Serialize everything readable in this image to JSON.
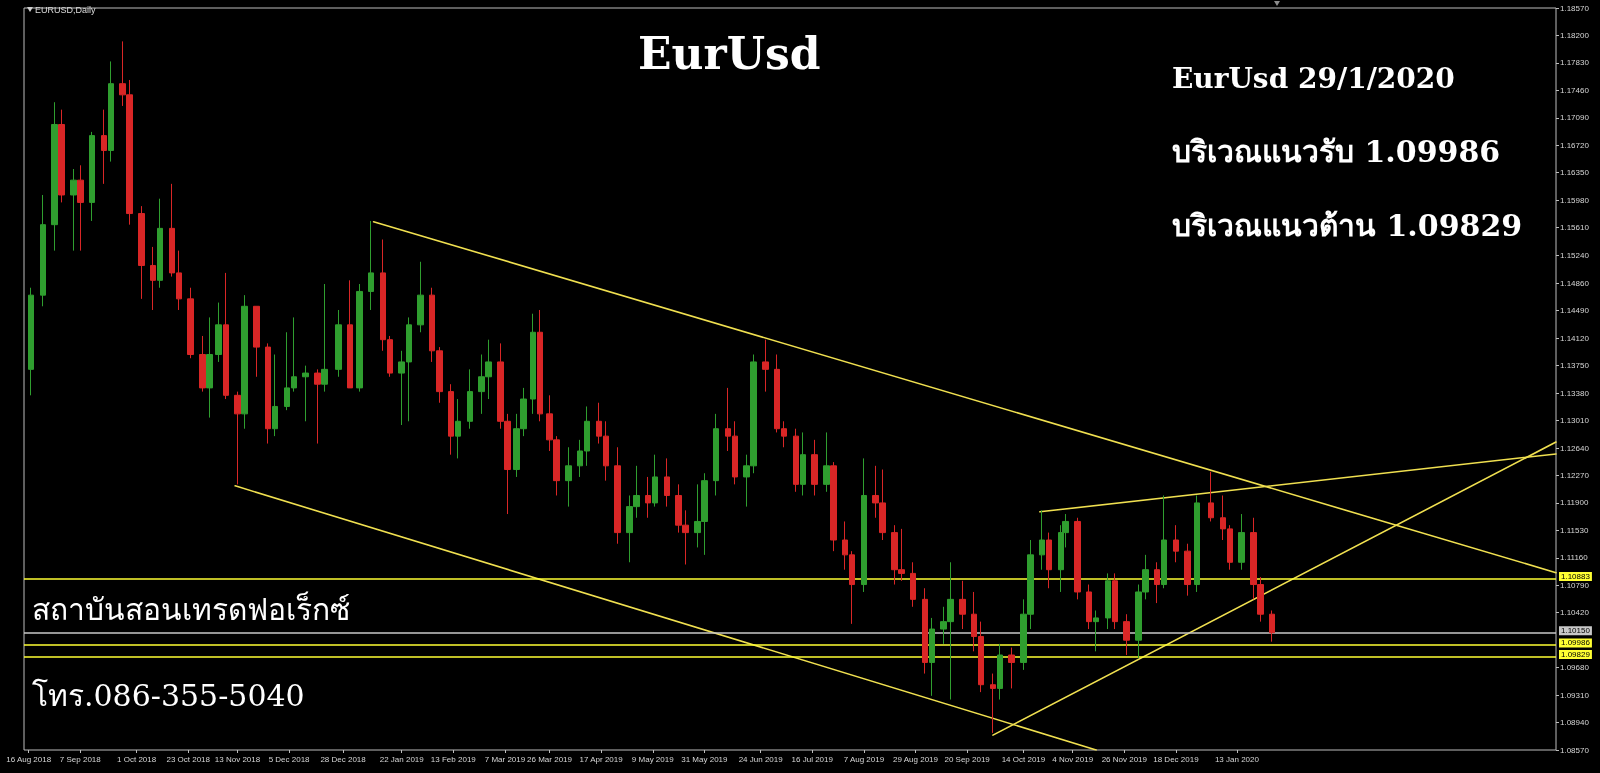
{
  "chart_data": {
    "type": "candlestick",
    "title": "EurUsd",
    "annotations": [
      "EURUSD,Daily",
      "EurUsd 29/1/2020",
      "บริเวณแนวรับ 1.09986",
      "บริเวณแนวต้าน 1.09829",
      "สถาบันสอนเทรดฟอเร็กซ์",
      "โทร.086-355-5040"
    ],
    "xlim": [
      "2018-08-14",
      "2020-05-28"
    ],
    "xticks": [
      {
        "value": "2018-08-16",
        "label": "16 Aug 2018"
      },
      {
        "value": "2018-09-07",
        "label": "7 Sep 2018"
      },
      {
        "value": "2018-10-01",
        "label": "1 Oct 2018"
      },
      {
        "value": "2018-10-23",
        "label": "23 Oct 2018"
      },
      {
        "value": "2018-11-13",
        "label": "13 Nov 2018"
      },
      {
        "value": "2018-12-05",
        "label": "5 Dec 2018"
      },
      {
        "value": "2018-12-28",
        "label": "28 Dec 2018"
      },
      {
        "value": "2019-01-22",
        "label": "22 Jan 2019"
      },
      {
        "value": "2019-02-13",
        "label": "13 Feb 2019"
      },
      {
        "value": "2019-03-07",
        "label": "7 Mar 2019"
      },
      {
        "value": "2019-03-26",
        "label": "26 Mar 2019"
      },
      {
        "value": "2019-04-17",
        "label": "17 Apr 2019"
      },
      {
        "value": "2019-05-09",
        "label": "9 May 2019"
      },
      {
        "value": "2019-05-31",
        "label": "31 May 2019"
      },
      {
        "value": "2019-06-24",
        "label": "24 Jun 2019"
      },
      {
        "value": "2019-07-16",
        "label": "16 Jul 2019"
      },
      {
        "value": "2019-08-07",
        "label": "7 Aug 2019"
      },
      {
        "value": "2019-08-29",
        "label": "29 Aug 2019"
      },
      {
        "value": "2019-09-20",
        "label": "20 Sep 2019"
      },
      {
        "value": "2019-10-14",
        "label": "14 Oct 2019"
      },
      {
        "value": "2019-11-04",
        "label": "4 Nov 2019"
      },
      {
        "value": "2019-11-26",
        "label": "26 Nov 2019"
      },
      {
        "value": "2019-12-18",
        "label": "18 Dec 2019"
      },
      {
        "value": "2020-01-13",
        "label": "13 Jan 2020"
      }
    ],
    "ylim": [
      1.0857,
      1.1857
    ],
    "yticks": [
      {
        "value": 1.1857,
        "label": "1.18570"
      },
      {
        "value": 1.182,
        "label": "1.18200"
      },
      {
        "value": 1.1783,
        "label": "1.17830"
      },
      {
        "value": 1.1746,
        "label": "1.17460"
      },
      {
        "value": 1.1709,
        "label": "1.17090"
      },
      {
        "value": 1.1672,
        "label": "1.16720"
      },
      {
        "value": 1.1635,
        "label": "1.16350"
      },
      {
        "value": 1.1598,
        "label": "1.15980"
      },
      {
        "value": 1.1561,
        "label": "1.15610"
      },
      {
        "value": 1.1524,
        "label": "1.15240"
      },
      {
        "value": 1.1486,
        "label": "1.14860"
      },
      {
        "value": 1.1449,
        "label": "1.14490"
      },
      {
        "value": 1.1412,
        "label": "1.14120"
      },
      {
        "value": 1.1375,
        "label": "1.13750"
      },
      {
        "value": 1.1338,
        "label": "1.13380"
      },
      {
        "value": 1.1301,
        "label": "1.13010"
      },
      {
        "value": 1.1264,
        "label": "1.12640"
      },
      {
        "value": 1.1227,
        "label": "1.12270"
      },
      {
        "value": 1.119,
        "label": "1.11900"
      },
      {
        "value": 1.1153,
        "label": "1.11530"
      },
      {
        "value": 1.1116,
        "label": "1.11160"
      },
      {
        "value": 1.1079,
        "label": "1.10790"
      },
      {
        "value": 1.1042,
        "label": "1.10420"
      },
      {
        "value": 1.0968,
        "label": "1.09680"
      },
      {
        "value": 1.0931,
        "label": "1.09310"
      },
      {
        "value": 1.0894,
        "label": "1.08940"
      },
      {
        "value": 1.0857,
        "label": "1.08570"
      }
    ],
    "ref_lines": [
      {
        "axis": "y",
        "value": 1.10883,
        "label": "1.10883",
        "color": "#ffff33"
      },
      {
        "axis": "y",
        "value": 1.1015,
        "label": "1.10150",
        "color": "#c8c8c8"
      },
      {
        "axis": "y",
        "value": 1.09986,
        "label": "1.09986",
        "color": "#ffff33"
      },
      {
        "axis": "y",
        "value": 1.09829,
        "label": "1.09829",
        "color": "#ffff33"
      }
    ],
    "series": [
      {
        "x": [
          "2018-08-17",
          "2018-08-22",
          "2018-08-27",
          "2018-08-30",
          "2018-09-04",
          "2018-09-07",
          "2018-09-12",
          "2018-09-17",
          "2018-09-20",
          "2018-09-25",
          "2018-09-28",
          "2018-10-03",
          "2018-10-08",
          "2018-10-11",
          "2018-10-16",
          "2018-10-19",
          "2018-10-24",
          "2018-10-29",
          "2018-11-01",
          "2018-11-05",
          "2018-11-08",
          "2018-11-13",
          "2018-11-16",
          "2018-11-21",
          "2018-11-26",
          "2018-11-29",
          "2018-12-04",
          "2018-12-07",
          "2018-12-12",
          "2018-12-17",
          "2018-12-20",
          "2018-12-26",
          "2018-12-31",
          "2019-01-04",
          "2019-01-09",
          "2019-01-14",
          "2019-01-17",
          "2019-01-22",
          "2019-01-25",
          "2019-01-30",
          "2019-02-04",
          "2019-02-07",
          "2019-02-12",
          "2019-02-15",
          "2019-02-20",
          "2019-02-25",
          "2019-02-28",
          "2019-03-05",
          "2019-03-08",
          "2019-03-12",
          "2019-03-15",
          "2019-03-19",
          "2019-03-22",
          "2019-03-26",
          "2019-03-29",
          "2019-04-03",
          "2019-04-08",
          "2019-04-11",
          "2019-04-16",
          "2019-04-19",
          "2019-04-24",
          "2019-04-29",
          "2019-05-02",
          "2019-05-07",
          "2019-05-10",
          "2019-05-15",
          "2019-05-20",
          "2019-05-23",
          "2019-05-28",
          "2019-05-31",
          "2019-06-05",
          "2019-06-10",
          "2019-06-13",
          "2019-06-18",
          "2019-06-21",
          "2019-06-26",
          "2019-07-01",
          "2019-07-04",
          "2019-07-09",
          "2019-07-12",
          "2019-07-17",
          "2019-07-22",
          "2019-07-25",
          "2019-07-30",
          "2019-08-02",
          "2019-08-07",
          "2019-08-12",
          "2019-08-15",
          "2019-08-20",
          "2019-08-23",
          "2019-08-28",
          "2019-09-02",
          "2019-09-05",
          "2019-09-10",
          "2019-09-13",
          "2019-09-18",
          "2019-09-23",
          "2019-09-26",
          "2019-10-01",
          "2019-10-04",
          "2019-10-09",
          "2019-10-14",
          "2019-10-17",
          "2019-10-22",
          "2019-10-25",
          "2019-10-30",
          "2019-11-01",
          "2019-11-06",
          "2019-11-11",
          "2019-11-14",
          "2019-11-19",
          "2019-11-22",
          "2019-11-27",
          "2019-12-02",
          "2019-12-05",
          "2019-12-10",
          "2019-12-13",
          "2019-12-18",
          "2019-12-23",
          "2019-12-27",
          "2020-01-02",
          "2020-01-07",
          "2020-01-10",
          "2020-01-15",
          "2020-01-20",
          "2020-01-23",
          "2020-01-28"
        ],
        "ohlc": [
          [
            1.137,
            1.148,
            1.1335,
            1.147
          ],
          [
            1.147,
            1.1605,
            1.1455,
            1.1565
          ],
          [
            1.1565,
            1.173,
            1.153,
            1.17
          ],
          [
            1.17,
            1.172,
            1.1595,
            1.1605
          ],
          [
            1.1605,
            1.164,
            1.153,
            1.1625
          ],
          [
            1.1625,
            1.1645,
            1.153,
            1.1595
          ],
          [
            1.1595,
            1.169,
            1.157,
            1.1685
          ],
          [
            1.1685,
            1.172,
            1.162,
            1.1665
          ],
          [
            1.1665,
            1.1785,
            1.165,
            1.1755
          ],
          [
            1.1755,
            1.1812,
            1.1725,
            1.174
          ],
          [
            1.174,
            1.176,
            1.1565,
            1.158
          ],
          [
            1.158,
            1.159,
            1.1465,
            1.151
          ],
          [
            1.151,
            1.1535,
            1.145,
            1.149
          ],
          [
            1.149,
            1.16,
            1.148,
            1.156
          ],
          [
            1.156,
            1.162,
            1.1495,
            1.15
          ],
          [
            1.15,
            1.153,
            1.145,
            1.1465
          ],
          [
            1.1465,
            1.148,
            1.1385,
            1.139
          ],
          [
            1.139,
            1.1415,
            1.134,
            1.1345
          ],
          [
            1.1345,
            1.144,
            1.1305,
            1.139
          ],
          [
            1.139,
            1.146,
            1.138,
            1.143
          ],
          [
            1.143,
            1.15,
            1.133,
            1.1335
          ],
          [
            1.1335,
            1.134,
            1.1215,
            1.131
          ],
          [
            1.131,
            1.147,
            1.129,
            1.1455
          ],
          [
            1.1455,
            1.1455,
            1.136,
            1.14
          ],
          [
            1.14,
            1.1405,
            1.127,
            1.129
          ],
          [
            1.129,
            1.139,
            1.128,
            1.132
          ],
          [
            1.132,
            1.142,
            1.1315,
            1.1345
          ],
          [
            1.1345,
            1.144,
            1.134,
            1.136
          ],
          [
            1.136,
            1.1375,
            1.13,
            1.1365
          ],
          [
            1.1365,
            1.137,
            1.127,
            1.135
          ],
          [
            1.135,
            1.1485,
            1.134,
            1.137
          ],
          [
            1.137,
            1.145,
            1.136,
            1.143
          ],
          [
            1.143,
            1.149,
            1.1345,
            1.1345
          ],
          [
            1.1345,
            1.1485,
            1.134,
            1.1475
          ],
          [
            1.1475,
            1.157,
            1.145,
            1.15
          ],
          [
            1.15,
            1.1545,
            1.1395,
            1.141
          ],
          [
            1.141,
            1.1415,
            1.136,
            1.1365
          ],
          [
            1.1365,
            1.1395,
            1.1295,
            1.138
          ],
          [
            1.138,
            1.144,
            1.13,
            1.143
          ],
          [
            1.143,
            1.1515,
            1.142,
            1.147
          ],
          [
            1.147,
            1.148,
            1.138,
            1.1395
          ],
          [
            1.1395,
            1.14,
            1.1325,
            1.134
          ],
          [
            1.134,
            1.135,
            1.1255,
            1.128
          ],
          [
            1.128,
            1.133,
            1.125,
            1.13
          ],
          [
            1.13,
            1.137,
            1.129,
            1.134
          ],
          [
            1.134,
            1.139,
            1.131,
            1.136
          ],
          [
            1.136,
            1.141,
            1.133,
            1.138
          ],
          [
            1.138,
            1.1405,
            1.129,
            1.13
          ],
          [
            1.13,
            1.131,
            1.1175,
            1.1235
          ],
          [
            1.1235,
            1.131,
            1.1225,
            1.129
          ],
          [
            1.129,
            1.1345,
            1.128,
            1.133
          ],
          [
            1.133,
            1.1445,
            1.131,
            1.142
          ],
          [
            1.142,
            1.145,
            1.13,
            1.131
          ],
          [
            1.131,
            1.1335,
            1.126,
            1.1275
          ],
          [
            1.1275,
            1.128,
            1.12,
            1.122
          ],
          [
            1.122,
            1.1265,
            1.1185,
            1.124
          ],
          [
            1.124,
            1.1275,
            1.1225,
            1.126
          ],
          [
            1.126,
            1.132,
            1.124,
            1.13
          ],
          [
            1.13,
            1.1325,
            1.127,
            1.128
          ],
          [
            1.128,
            1.13,
            1.122,
            1.124
          ],
          [
            1.124,
            1.1265,
            1.1135,
            1.115
          ],
          [
            1.115,
            1.12,
            1.111,
            1.1185
          ],
          [
            1.1185,
            1.124,
            1.117,
            1.12
          ],
          [
            1.12,
            1.1225,
            1.117,
            1.119
          ],
          [
            1.119,
            1.1255,
            1.1185,
            1.1225
          ],
          [
            1.1225,
            1.125,
            1.1185,
            1.12
          ],
          [
            1.12,
            1.1215,
            1.115,
            1.116
          ],
          [
            1.116,
            1.118,
            1.1107,
            1.115
          ],
          [
            1.115,
            1.1215,
            1.113,
            1.1165
          ],
          [
            1.1165,
            1.123,
            1.112,
            1.122
          ],
          [
            1.122,
            1.131,
            1.12,
            1.129
          ],
          [
            1.129,
            1.1345,
            1.126,
            1.128
          ],
          [
            1.128,
            1.13,
            1.1215,
            1.1225
          ],
          [
            1.1225,
            1.1255,
            1.1185,
            1.124
          ],
          [
            1.124,
            1.139,
            1.123,
            1.138
          ],
          [
            1.138,
            1.141,
            1.134,
            1.137
          ],
          [
            1.137,
            1.139,
            1.1285,
            1.129
          ],
          [
            1.129,
            1.13,
            1.1265,
            1.128
          ],
          [
            1.128,
            1.129,
            1.1205,
            1.1215
          ],
          [
            1.1215,
            1.1285,
            1.12,
            1.1255
          ],
          [
            1.1255,
            1.1275,
            1.12,
            1.1215
          ],
          [
            1.1215,
            1.1285,
            1.1205,
            1.124
          ],
          [
            1.124,
            1.1245,
            1.1125,
            1.114
          ],
          [
            1.114,
            1.1165,
            1.11,
            1.112
          ],
          [
            1.112,
            1.1125,
            1.1027,
            1.108
          ],
          [
            1.108,
            1.125,
            1.107,
            1.12
          ],
          [
            1.12,
            1.124,
            1.117,
            1.119
          ],
          [
            1.119,
            1.1235,
            1.114,
            1.115
          ],
          [
            1.115,
            1.116,
            1.108,
            1.11
          ],
          [
            1.11,
            1.1155,
            1.1085,
            1.1095
          ],
          [
            1.1095,
            1.111,
            1.105,
            1.106
          ],
          [
            1.106,
            1.1075,
            1.096,
            1.0975
          ],
          [
            1.0975,
            1.1035,
            1.093,
            1.102
          ],
          [
            1.102,
            1.105,
            1.1,
            1.103
          ],
          [
            1.103,
            1.111,
            1.0925,
            1.106
          ],
          [
            1.106,
            1.1085,
            1.102,
            1.104
          ],
          [
            1.104,
            1.107,
            1.099,
            1.101
          ],
          [
            1.101,
            1.103,
            1.0935,
            1.0945
          ],
          [
            1.0945,
            1.096,
            1.088,
            1.094
          ],
          [
            1.094,
            1.1,
            1.0925,
            1.0985
          ],
          [
            1.0985,
            1.0995,
            1.094,
            1.0975
          ],
          [
            1.0975,
            1.106,
            1.0965,
            1.104
          ],
          [
            1.104,
            1.114,
            1.102,
            1.112
          ],
          [
            1.112,
            1.118,
            1.11,
            1.114
          ],
          [
            1.114,
            1.115,
            1.1075,
            1.11
          ],
          [
            1.11,
            1.116,
            1.107,
            1.115
          ],
          [
            1.115,
            1.1175,
            1.113,
            1.1165
          ],
          [
            1.1165,
            1.117,
            1.106,
            1.107
          ],
          [
            1.107,
            1.108,
            1.102,
            1.103
          ],
          [
            1.103,
            1.1045,
            1.099,
            1.1035
          ],
          [
            1.1035,
            1.1095,
            1.102,
            1.1085
          ],
          [
            1.1085,
            1.1095,
            1.102,
            1.103
          ],
          [
            1.103,
            1.104,
            1.0985,
            1.1005
          ],
          [
            1.1005,
            1.108,
            1.0981,
            1.107
          ],
          [
            1.107,
            1.112,
            1.106,
            1.11
          ],
          [
            1.11,
            1.111,
            1.1055,
            1.108
          ],
          [
            1.108,
            1.12,
            1.1075,
            1.114
          ],
          [
            1.114,
            1.116,
            1.111,
            1.1125
          ],
          [
            1.1125,
            1.1135,
            1.1065,
            1.108
          ],
          [
            1.108,
            1.12,
            1.107,
            1.119
          ],
          [
            1.119,
            1.1232,
            1.1165,
            1.117
          ],
          [
            1.117,
            1.12,
            1.114,
            1.1155
          ],
          [
            1.1155,
            1.116,
            1.11,
            1.111
          ],
          [
            1.111,
            1.1175,
            1.11,
            1.115
          ],
          [
            1.115,
            1.117,
            1.106,
            1.108
          ],
          [
            1.108,
            1.109,
            1.103,
            1.104
          ],
          [
            1.104,
            1.1045,
            1.1003,
            1.1015
          ]
        ],
        "colors": [
          "#2f9e2f",
          "#2f9e2f",
          "#2f9e2f",
          "#d92626",
          "#2f9e2f",
          "#d92626",
          "#2f9e2f",
          "#d92626",
          "#2f9e2f",
          "#d92626",
          "#d92626",
          "#d92626",
          "#d92626",
          "#2f9e2f",
          "#d92626",
          "#d92626",
          "#d92626",
          "#d92626",
          "#2f9e2f",
          "#2f9e2f",
          "#d92626",
          "#d92626",
          "#2f9e2f",
          "#d92626",
          "#d92626",
          "#2f9e2f",
          "#2f9e2f",
          "#2f9e2f",
          "#2f9e2f",
          "#d92626",
          "#2f9e2f",
          "#2f9e2f",
          "#d92626",
          "#2f9e2f",
          "#2f9e2f",
          "#d92626",
          "#d92626",
          "#2f9e2f",
          "#2f9e2f",
          "#2f9e2f",
          "#d92626",
          "#d92626",
          "#d92626",
          "#2f9e2f",
          "#2f9e2f",
          "#2f9e2f",
          "#2f9e2f",
          "#d92626",
          "#d92626",
          "#2f9e2f",
          "#2f9e2f",
          "#2f9e2f",
          "#d92626",
          "#d92626",
          "#d92626",
          "#2f9e2f",
          "#2f9e2f",
          "#2f9e2f",
          "#d92626",
          "#d92626",
          "#d92626",
          "#2f9e2f",
          "#2f9e2f",
          "#d92626",
          "#2f9e2f",
          "#d92626",
          "#d92626",
          "#d92626",
          "#2f9e2f",
          "#2f9e2f",
          "#2f9e2f",
          "#d92626",
          "#d92626",
          "#2f9e2f",
          "#2f9e2f",
          "#d92626",
          "#d92626",
          "#d92626",
          "#d92626",
          "#2f9e2f",
          "#d92626",
          "#2f9e2f",
          "#d92626",
          "#d92626",
          "#d92626",
          "#2f9e2f",
          "#d92626",
          "#d92626",
          "#d92626",
          "#d92626",
          "#d92626",
          "#d92626",
          "#2f9e2f",
          "#2f9e2f",
          "#2f9e2f",
          "#d92626",
          "#d92626",
          "#d92626",
          "#d92626",
          "#2f9e2f",
          "#d92626",
          "#2f9e2f",
          "#2f9e2f",
          "#2f9e2f",
          "#d92626",
          "#2f9e2f",
          "#2f9e2f",
          "#d92626",
          "#d92626",
          "#2f9e2f",
          "#2f9e2f",
          "#d92626",
          "#d92626",
          "#2f9e2f",
          "#2f9e2f",
          "#d92626",
          "#2f9e2f",
          "#d92626",
          "#d92626",
          "#2f9e2f",
          "#d92626",
          "#d92626",
          "#d92626",
          "#2f9e2f",
          "#d92626",
          "#d92626",
          "#d92626"
        ]
      },
      {
        "type": "line",
        "x": [
          "2019-01-10",
          "2020-05-28"
        ],
        "values": [
          1.1569,
          1.1096
        ],
        "color": "#f0e050"
      },
      {
        "type": "line",
        "x": [
          "2018-11-12",
          "2019-11-14"
        ],
        "values": [
          1.1213,
          1.0857
        ],
        "color": "#f0e050"
      },
      {
        "type": "line",
        "x": [
          "2019-10-21",
          "2020-05-28"
        ],
        "values": [
          1.1178,
          1.1256
        ],
        "color": "#f0e050"
      },
      {
        "type": "line",
        "x": [
          "2019-10-01",
          "2020-05-28"
        ],
        "values": [
          1.0877,
          1.1272
        ],
        "color": "#f0e050"
      }
    ]
  }
}
